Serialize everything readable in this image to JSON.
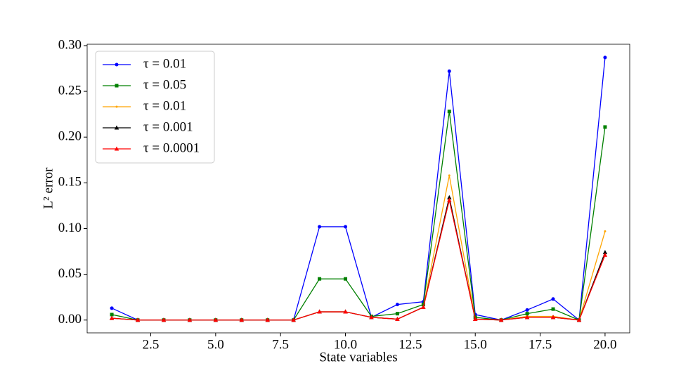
{
  "chart_data": {
    "type": "line",
    "x_label": "State variables",
    "y_label": "L² error",
    "x": [
      1,
      2,
      3,
      4,
      5,
      6,
      7,
      8,
      9,
      10,
      11,
      12,
      13,
      14,
      15,
      16,
      17,
      18,
      19,
      20
    ],
    "series": [
      {
        "name": "τ = 0.01",
        "color": "#0000ff",
        "marker": "circle",
        "values": [
          0.013,
          0,
          0,
          0,
          0,
          0,
          0,
          0,
          0.102,
          0.102,
          0.003,
          0.017,
          0.02,
          0.272,
          0.006,
          0,
          0.011,
          0.023,
          0,
          0.287
        ]
      },
      {
        "name": "τ = 0.05",
        "color": "#008000",
        "marker": "square",
        "values": [
          0.006,
          0,
          0,
          0,
          0,
          0,
          0,
          0,
          0.045,
          0.045,
          0.004,
          0.007,
          0.017,
          0.228,
          0.003,
          0,
          0.007,
          0.012,
          0,
          0.211
        ]
      },
      {
        "name": "τ = 0.01",
        "color": "#ffa500",
        "marker": "plus",
        "values": [
          0.002,
          0,
          0,
          0,
          0,
          0,
          0,
          0,
          0.009,
          0.009,
          0.003,
          0.001,
          0.014,
          0.158,
          0.001,
          0,
          0.004,
          0.004,
          0,
          0.097
        ]
      },
      {
        "name": "τ = 0.001",
        "color": "#000000",
        "marker": "triangle",
        "values": [
          0.002,
          0,
          0,
          0,
          0,
          0,
          0,
          0,
          0.009,
          0.009,
          0.003,
          0.001,
          0.014,
          0.134,
          0.001,
          0,
          0.003,
          0.003,
          0,
          0.074
        ]
      },
      {
        "name": "τ = 0.0001",
        "color": "#ff0000",
        "marker": "triangle",
        "values": [
          0.002,
          0,
          0,
          0,
          0,
          0,
          0,
          0,
          0.009,
          0.009,
          0.003,
          0.001,
          0.014,
          0.131,
          0.001,
          0,
          0.003,
          0.003,
          0,
          0.071
        ]
      }
    ],
    "xlim": [
      0.05,
      20.95
    ],
    "xticks": [
      {
        "value": 2.5,
        "label": "2.5"
      },
      {
        "value": 5,
        "label": "5.0"
      },
      {
        "value": 7.5,
        "label": "7.5"
      },
      {
        "value": 10,
        "label": "10.0"
      },
      {
        "value": 12.5,
        "label": "12.5"
      },
      {
        "value": 15,
        "label": "15.0"
      },
      {
        "value": 17.5,
        "label": "17.5"
      },
      {
        "value": 20,
        "label": "20.0"
      }
    ],
    "ylim": [
      -0.014,
      0.3015
    ],
    "yticks": [
      {
        "value": 0,
        "label": "0.00"
      },
      {
        "value": 0.05,
        "label": "0.05"
      },
      {
        "value": 0.1,
        "label": "0.10"
      },
      {
        "value": 0.15,
        "label": "0.15"
      },
      {
        "value": 0.2,
        "label": "0.20"
      },
      {
        "value": 0.25,
        "label": "0.25"
      },
      {
        "value": 0.3,
        "label": "0.30"
      }
    ],
    "legend": "upper left"
  }
}
